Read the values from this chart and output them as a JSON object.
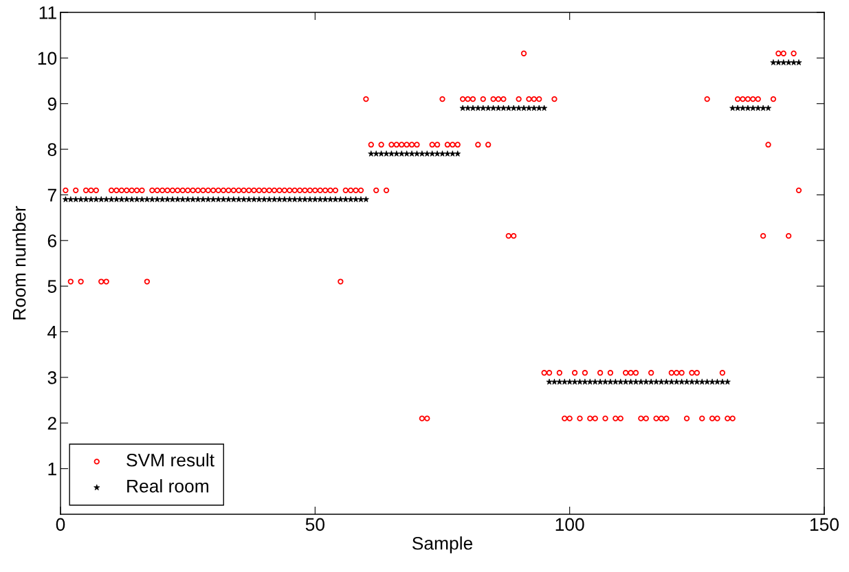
{
  "chart_data": {
    "type": "scatter",
    "xlabel": "Sample",
    "ylabel": "Room number",
    "x": [
      1,
      2,
      3,
      4,
      5,
      6,
      7,
      8,
      9,
      10,
      11,
      12,
      13,
      14,
      15,
      16,
      17,
      18,
      19,
      20,
      21,
      22,
      23,
      24,
      25,
      26,
      27,
      28,
      29,
      30,
      31,
      32,
      33,
      34,
      35,
      36,
      37,
      38,
      39,
      40,
      41,
      42,
      43,
      44,
      45,
      46,
      47,
      48,
      49,
      50,
      51,
      52,
      53,
      54,
      55,
      56,
      57,
      58,
      59,
      60,
      61,
      62,
      63,
      64,
      65,
      66,
      67,
      68,
      69,
      70,
      71,
      72,
      73,
      74,
      75,
      76,
      77,
      78,
      79,
      80,
      81,
      82,
      83,
      84,
      85,
      86,
      87,
      88,
      89,
      90,
      91,
      92,
      93,
      94,
      95,
      96,
      97,
      98,
      99,
      100,
      101,
      102,
      103,
      104,
      105,
      106,
      107,
      108,
      109,
      110,
      111,
      112,
      113,
      114,
      115,
      116,
      117,
      118,
      119,
      120,
      121,
      122,
      123,
      124,
      125,
      126,
      127,
      128,
      129,
      130,
      131,
      132,
      133,
      134,
      135,
      136,
      137,
      138,
      139,
      140,
      141,
      142,
      143,
      144,
      145
    ],
    "series": [
      {
        "name": "SVM result",
        "color": "#ff0000",
        "marker": "circle",
        "values": [
          7.1,
          5.1,
          7.1,
          5.1,
          7.1,
          7.1,
          7.1,
          5.1,
          5.1,
          7.1,
          7.1,
          7.1,
          7.1,
          7.1,
          7.1,
          7.1,
          5.1,
          7.1,
          7.1,
          7.1,
          7.1,
          7.1,
          7.1,
          7.1,
          7.1,
          7.1,
          7.1,
          7.1,
          7.1,
          7.1,
          7.1,
          7.1,
          7.1,
          7.1,
          7.1,
          7.1,
          7.1,
          7.1,
          7.1,
          7.1,
          7.1,
          7.1,
          7.1,
          7.1,
          7.1,
          7.1,
          7.1,
          7.1,
          7.1,
          7.1,
          7.1,
          7.1,
          7.1,
          7.1,
          5.1,
          7.1,
          7.1,
          7.1,
          7.1,
          9.1,
          8.1,
          7.1,
          8.1,
          7.1,
          8.1,
          8.1,
          8.1,
          8.1,
          8.1,
          8.1,
          2.1,
          2.1,
          8.1,
          8.1,
          9.1,
          8.1,
          8.1,
          8.1,
          9.1,
          9.1,
          9.1,
          8.1,
          9.1,
          8.1,
          9.1,
          9.1,
          9.1,
          6.1,
          6.1,
          9.1,
          10.1,
          9.1,
          9.1,
          9.1,
          3.1,
          3.1,
          9.1,
          3.1,
          2.1,
          2.1,
          3.1,
          2.1,
          3.1,
          2.1,
          2.1,
          3.1,
          2.1,
          3.1,
          2.1,
          2.1,
          3.1,
          3.1,
          3.1,
          2.1,
          2.1,
          3.1,
          2.1,
          2.1,
          2.1,
          3.1,
          3.1,
          3.1,
          2.1,
          3.1,
          3.1,
          2.1,
          9.1,
          2.1,
          2.1,
          3.1,
          2.1,
          2.1,
          9.1,
          9.1,
          9.1,
          9.1,
          9.1,
          6.1,
          8.1,
          9.1,
          10.1,
          10.1,
          6.1,
          10.1,
          7.1
        ]
      },
      {
        "name": "Real room",
        "color": "#000000",
        "marker": "star",
        "values": [
          6.9,
          6.9,
          6.9,
          6.9,
          6.9,
          6.9,
          6.9,
          6.9,
          6.9,
          6.9,
          6.9,
          6.9,
          6.9,
          6.9,
          6.9,
          6.9,
          6.9,
          6.9,
          6.9,
          6.9,
          6.9,
          6.9,
          6.9,
          6.9,
          6.9,
          6.9,
          6.9,
          6.9,
          6.9,
          6.9,
          6.9,
          6.9,
          6.9,
          6.9,
          6.9,
          6.9,
          6.9,
          6.9,
          6.9,
          6.9,
          6.9,
          6.9,
          6.9,
          6.9,
          6.9,
          6.9,
          6.9,
          6.9,
          6.9,
          6.9,
          6.9,
          6.9,
          6.9,
          6.9,
          6.9,
          6.9,
          6.9,
          6.9,
          6.9,
          6.9,
          7.9,
          7.9,
          7.9,
          7.9,
          7.9,
          7.9,
          7.9,
          7.9,
          7.9,
          7.9,
          7.9,
          7.9,
          7.9,
          7.9,
          7.9,
          7.9,
          7.9,
          7.9,
          8.9,
          8.9,
          8.9,
          8.9,
          8.9,
          8.9,
          8.9,
          8.9,
          8.9,
          8.9,
          8.9,
          8.9,
          8.9,
          8.9,
          8.9,
          8.9,
          8.9,
          2.9,
          2.9,
          2.9,
          2.9,
          2.9,
          2.9,
          2.9,
          2.9,
          2.9,
          2.9,
          2.9,
          2.9,
          2.9,
          2.9,
          2.9,
          2.9,
          2.9,
          2.9,
          2.9,
          2.9,
          2.9,
          2.9,
          2.9,
          2.9,
          2.9,
          2.9,
          2.9,
          2.9,
          2.9,
          2.9,
          2.9,
          2.9,
          2.9,
          2.9,
          2.9,
          2.9,
          8.9,
          8.9,
          8.9,
          8.9,
          8.9,
          8.9,
          8.9,
          8.9,
          9.9,
          9.9,
          9.9,
          9.9,
          9.9,
          9.9
        ]
      }
    ],
    "xlim": [
      0,
      150
    ],
    "xticks": [
      0,
      50,
      100,
      150
    ],
    "ylim": [
      0,
      11
    ],
    "yticks": [
      1,
      2,
      3,
      4,
      5,
      6,
      7,
      8,
      9,
      10,
      11
    ],
    "grid": false,
    "legend": "bottom left"
  }
}
